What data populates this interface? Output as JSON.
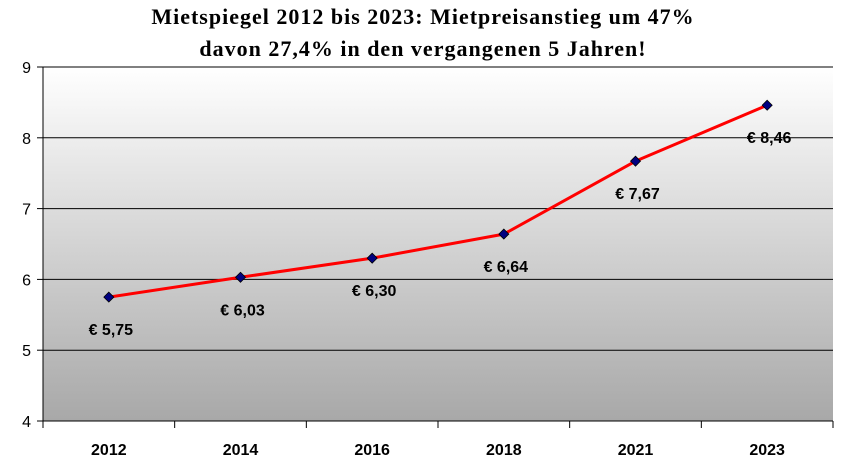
{
  "chart_data": {
    "type": "line",
    "title_line1": "Mietspiegel 2012 bis 2023: Mietpreisanstieg um 47%",
    "title_line2": "davon 27,4% in den vergangenen 5 Jahren!",
    "categories": [
      "2012",
      "2014",
      "2016",
      "2018",
      "2021",
      "2023"
    ],
    "values": [
      5.75,
      6.03,
      6.3,
      6.64,
      7.67,
      8.46
    ],
    "data_labels": [
      "€ 5,75",
      "€ 6,03",
      "€ 6,30",
      "€ 6,64",
      "€ 7,67",
      "€ 8,46"
    ],
    "ylim": [
      4,
      9
    ],
    "yticks": [
      "4",
      "5",
      "6",
      "7",
      "8",
      "9"
    ],
    "grid": true,
    "line_color": "#ff0000",
    "marker_color": "#000080",
    "plot_gradient_top": "#ffffff",
    "plot_gradient_bottom": "#a8a8a8"
  }
}
